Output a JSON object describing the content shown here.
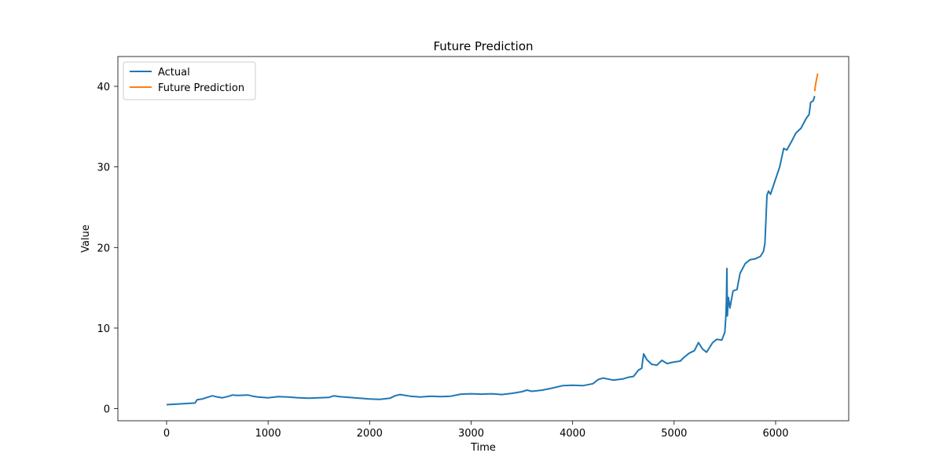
{
  "chart_data": {
    "type": "line",
    "title": "Future Prediction",
    "xlabel": "Time",
    "ylabel": "Value",
    "xlim": [
      -480,
      6720
    ],
    "ylim": [
      -1.5,
      43.7
    ],
    "x_ticks": [
      0,
      1000,
      2000,
      3000,
      4000,
      5000,
      6000
    ],
    "y_ticks": [
      0,
      10,
      20,
      30,
      40
    ],
    "grid": false,
    "legend": "top-left",
    "series": [
      {
        "name": "Actual",
        "color": "#1f77b4",
        "points": [
          [
            0,
            0.5
          ],
          [
            150,
            0.6
          ],
          [
            280,
            0.7
          ],
          [
            300,
            1.1
          ],
          [
            350,
            1.2
          ],
          [
            400,
            1.4
          ],
          [
            450,
            1.6
          ],
          [
            500,
            1.45
          ],
          [
            550,
            1.35
          ],
          [
            600,
            1.5
          ],
          [
            650,
            1.7
          ],
          [
            700,
            1.65
          ],
          [
            800,
            1.7
          ],
          [
            850,
            1.55
          ],
          [
            900,
            1.45
          ],
          [
            1000,
            1.35
          ],
          [
            1100,
            1.5
          ],
          [
            1200,
            1.45
          ],
          [
            1300,
            1.35
          ],
          [
            1400,
            1.3
          ],
          [
            1500,
            1.35
          ],
          [
            1600,
            1.4
          ],
          [
            1650,
            1.6
          ],
          [
            1700,
            1.5
          ],
          [
            1800,
            1.4
          ],
          [
            1900,
            1.3
          ],
          [
            2000,
            1.2
          ],
          [
            2100,
            1.15
          ],
          [
            2200,
            1.3
          ],
          [
            2250,
            1.6
          ],
          [
            2300,
            1.75
          ],
          [
            2400,
            1.55
          ],
          [
            2500,
            1.45
          ],
          [
            2600,
            1.55
          ],
          [
            2700,
            1.5
          ],
          [
            2800,
            1.55
          ],
          [
            2900,
            1.8
          ],
          [
            3000,
            1.85
          ],
          [
            3100,
            1.8
          ],
          [
            3200,
            1.85
          ],
          [
            3300,
            1.75
          ],
          [
            3400,
            1.9
          ],
          [
            3500,
            2.1
          ],
          [
            3550,
            2.3
          ],
          [
            3600,
            2.15
          ],
          [
            3700,
            2.3
          ],
          [
            3800,
            2.55
          ],
          [
            3900,
            2.85
          ],
          [
            4000,
            2.9
          ],
          [
            4100,
            2.85
          ],
          [
            4200,
            3.1
          ],
          [
            4250,
            3.6
          ],
          [
            4300,
            3.8
          ],
          [
            4400,
            3.55
          ],
          [
            4500,
            3.7
          ],
          [
            4550,
            3.9
          ],
          [
            4600,
            4.0
          ],
          [
            4650,
            4.8
          ],
          [
            4680,
            5.0
          ],
          [
            4700,
            6.8
          ],
          [
            4730,
            6.1
          ],
          [
            4780,
            5.5
          ],
          [
            4830,
            5.4
          ],
          [
            4880,
            6.0
          ],
          [
            4930,
            5.6
          ],
          [
            5000,
            5.8
          ],
          [
            5060,
            5.9
          ],
          [
            5100,
            6.4
          ],
          [
            5150,
            6.9
          ],
          [
            5200,
            7.2
          ],
          [
            5240,
            8.2
          ],
          [
            5280,
            7.4
          ],
          [
            5320,
            7.0
          ],
          [
            5380,
            8.2
          ],
          [
            5420,
            8.6
          ],
          [
            5470,
            8.5
          ],
          [
            5500,
            9.5
          ],
          [
            5510,
            11.5
          ],
          [
            5515,
            13.5
          ],
          [
            5520,
            17.4
          ],
          [
            5525,
            11.5
          ],
          [
            5535,
            13.8
          ],
          [
            5550,
            12.5
          ],
          [
            5580,
            14.6
          ],
          [
            5620,
            14.8
          ],
          [
            5650,
            16.8
          ],
          [
            5700,
            18.0
          ],
          [
            5750,
            18.5
          ],
          [
            5800,
            18.6
          ],
          [
            5850,
            18.9
          ],
          [
            5880,
            19.5
          ],
          [
            5895,
            20.5
          ],
          [
            5905,
            23.5
          ],
          [
            5915,
            26.5
          ],
          [
            5930,
            27.0
          ],
          [
            5950,
            26.6
          ],
          [
            6000,
            28.5
          ],
          [
            6040,
            30.0
          ],
          [
            6080,
            32.3
          ],
          [
            6110,
            32.1
          ],
          [
            6150,
            33.0
          ],
          [
            6200,
            34.2
          ],
          [
            6250,
            34.8
          ],
          [
            6300,
            36.0
          ],
          [
            6330,
            36.5
          ],
          [
            6345,
            38.0
          ],
          [
            6370,
            38.2
          ],
          [
            6385,
            38.8
          ]
        ]
      },
      {
        "name": "Future Prediction",
        "color": "#ff7f0e",
        "points": [
          [
            6385,
            39.4
          ],
          [
            6395,
            40.3
          ],
          [
            6405,
            41.0
          ],
          [
            6415,
            41.6
          ]
        ]
      }
    ]
  }
}
